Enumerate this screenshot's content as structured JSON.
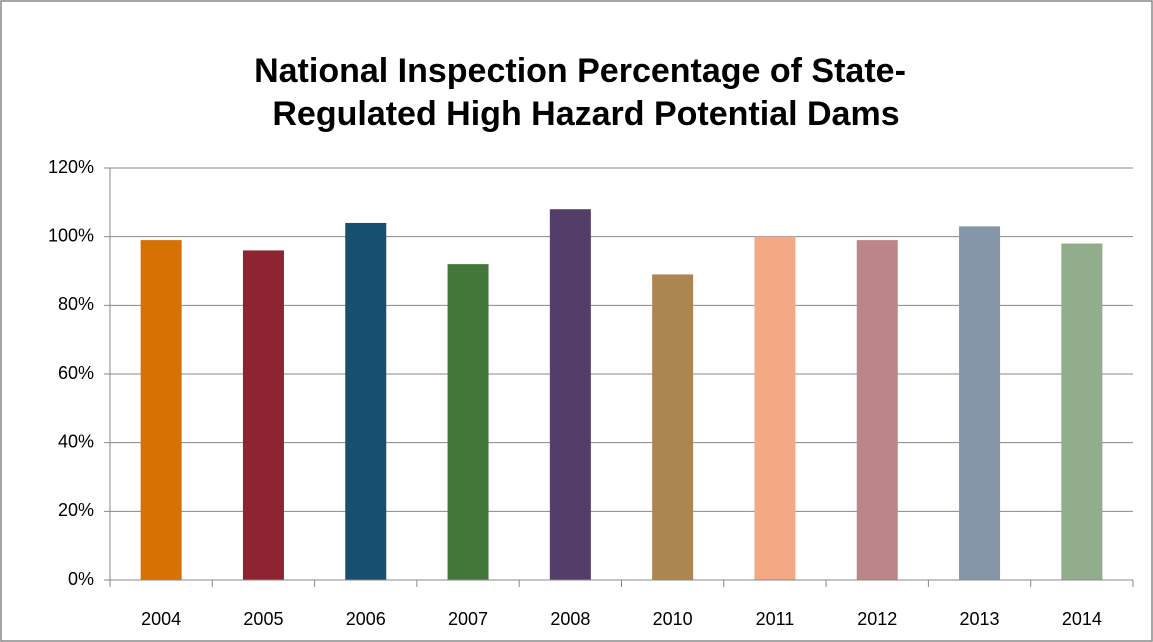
{
  "chart_data": {
    "type": "bar",
    "title": [
      "National Inspection Percentage of State-",
      "Regulated High Hazard Potential Dams"
    ],
    "categories": [
      "2004",
      "2005",
      "2006",
      "2007",
      "2008",
      "2010",
      "2011",
      "2012",
      "2013",
      "2014"
    ],
    "values": [
      99,
      96,
      104,
      92,
      108,
      89,
      100,
      99,
      103,
      98
    ],
    "colors": [
      "#d77104",
      "#8e2332",
      "#174f6f",
      "#44773a",
      "#533e6a",
      "#ab8650",
      "#f4a884",
      "#bc8688",
      "#8496a8",
      "#92ad8b"
    ],
    "ylim": [
      0,
      120
    ],
    "yticks": [
      {
        "value": 0,
        "label": "0%"
      },
      {
        "value": 20,
        "label": "20%"
      },
      {
        "value": 40,
        "label": "40%"
      },
      {
        "value": 60,
        "label": "60%"
      },
      {
        "value": 80,
        "label": "80%"
      },
      {
        "value": 100,
        "label": "100%"
      },
      {
        "value": 120,
        "label": "120%"
      }
    ],
    "grid": true
  }
}
